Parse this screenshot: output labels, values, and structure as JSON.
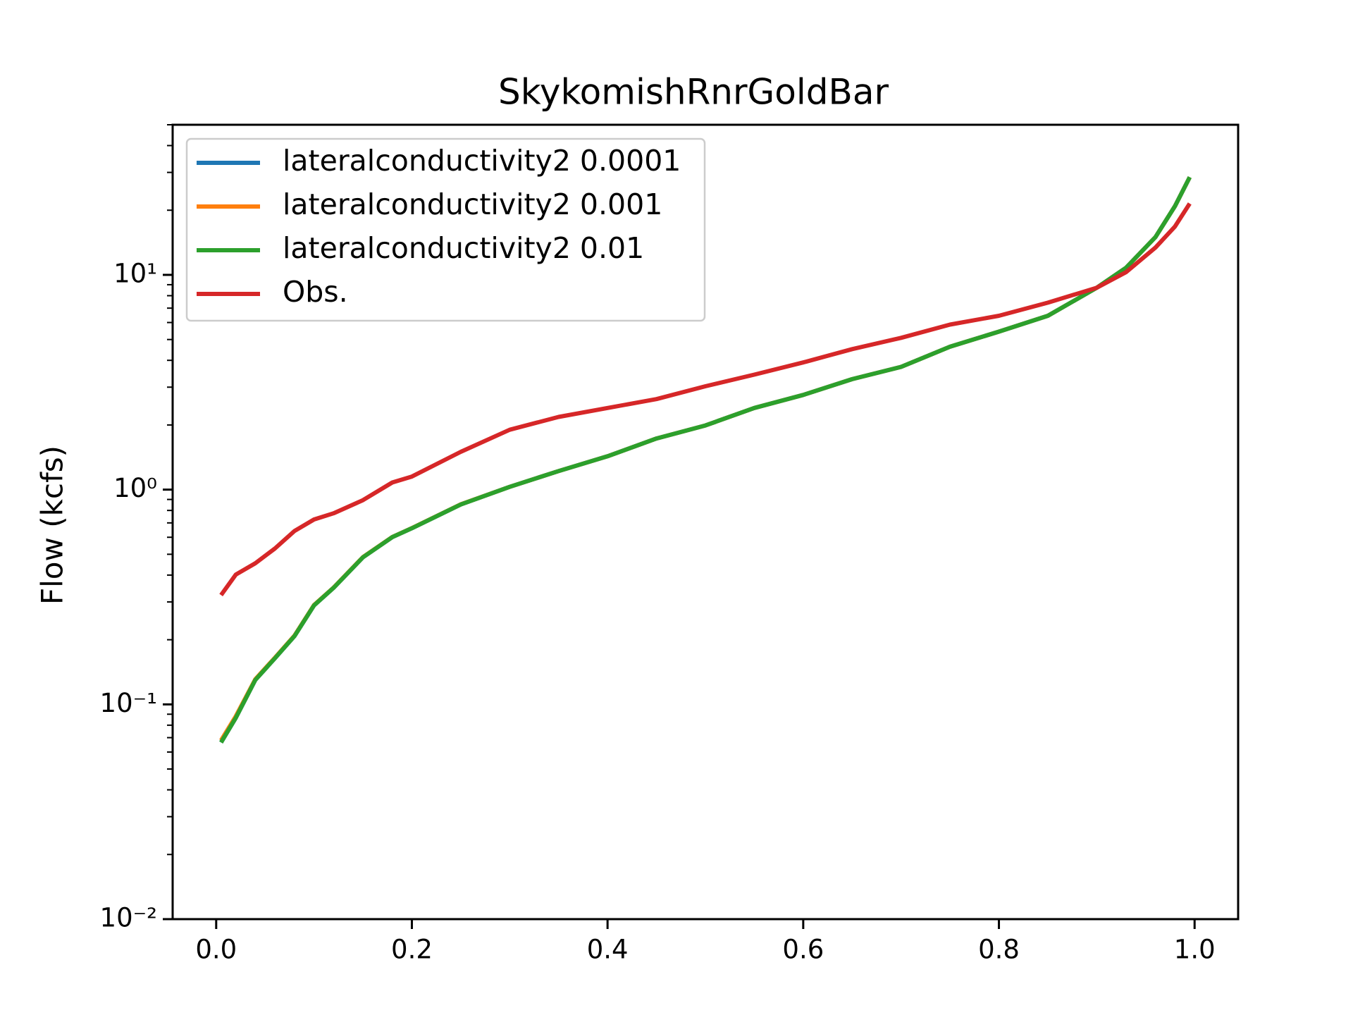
{
  "chart_data": {
    "type": "line",
    "title": "SkykomishRnrGoldBar",
    "ylabel": "Flow (kcfs)",
    "x": [
      0.005,
      0.02,
      0.04,
      0.06,
      0.08,
      0.1,
      0.12,
      0.15,
      0.18,
      0.2,
      0.25,
      0.3,
      0.35,
      0.4,
      0.45,
      0.5,
      0.55,
      0.6,
      0.65,
      0.7,
      0.75,
      0.8,
      0.85,
      0.9,
      0.93,
      0.96,
      0.98,
      0.995
    ],
    "series": [
      {
        "name": "lateralconductivity2 0.0001",
        "color": "#1f77b4",
        "values": [
          0.0665,
          0.0866,
          0.13,
          0.164,
          0.208,
          0.289,
          0.349,
          0.484,
          0.601,
          0.661,
          0.853,
          1.03,
          1.22,
          1.43,
          1.73,
          1.99,
          2.4,
          2.76,
          3.27,
          3.73,
          4.63,
          5.44,
          6.45,
          8.71,
          10.8,
          15.0,
          20.9,
          28.5
        ]
      },
      {
        "name": "lateralconductivity2 0.001",
        "color": "#ff7f0e",
        "values": [
          0.068,
          0.088,
          0.131,
          0.165,
          0.209,
          0.29,
          0.35,
          0.485,
          0.602,
          0.662,
          0.854,
          1.03,
          1.22,
          1.43,
          1.73,
          1.99,
          2.4,
          2.76,
          3.27,
          3.73,
          4.63,
          5.44,
          6.45,
          8.71,
          10.8,
          15.0,
          20.9,
          28.5
        ]
      },
      {
        "name": "lateralconductivity2 0.01",
        "color": "#2ca02c",
        "values": [
          0.0665,
          0.0866,
          0.13,
          0.164,
          0.208,
          0.289,
          0.349,
          0.484,
          0.601,
          0.661,
          0.853,
          1.03,
          1.22,
          1.43,
          1.73,
          1.99,
          2.4,
          2.76,
          3.27,
          3.73,
          4.63,
          5.44,
          6.45,
          8.71,
          10.8,
          15.0,
          20.9,
          28.5
        ]
      },
      {
        "name": "Obs.",
        "color": "#d62728",
        "values": [
          0.323,
          0.402,
          0.454,
          0.532,
          0.642,
          0.726,
          0.776,
          0.893,
          1.08,
          1.15,
          1.5,
          1.9,
          2.18,
          2.4,
          2.64,
          3.03,
          3.43,
          3.91,
          4.51,
          5.09,
          5.87,
          6.45,
          7.42,
          8.71,
          10.3,
          13.4,
          16.8,
          21.5
        ]
      }
    ],
    "xlim": [
      -0.0445,
      1.0445
    ],
    "xticks": [
      {
        "value": 0,
        "label": "0.0"
      },
      0.2,
      0.4,
      0.6,
      0.8,
      {
        "value": 1,
        "label": "1.0"
      }
    ],
    "ylim": [
      0.01,
      50
    ],
    "yscale": "log",
    "yticks": [
      {
        "value": 0.01,
        "label": "10⁻²"
      },
      {
        "value": 0.1,
        "label": "10⁻¹"
      },
      {
        "value": 1,
        "label": "10⁰"
      },
      {
        "value": 10,
        "label": "10¹"
      }
    ],
    "legend": "upper left",
    "grid": false
  }
}
